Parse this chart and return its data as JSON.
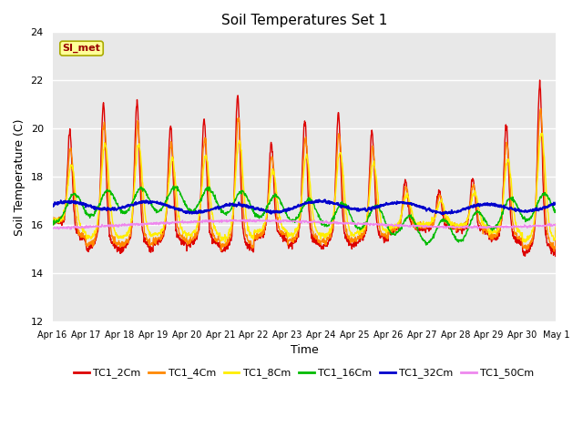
{
  "title": "Soil Temperatures Set 1",
  "xlabel": "Time",
  "ylabel": "Soil Temperature (C)",
  "ylim": [
    12,
    24
  ],
  "yticks": [
    12,
    14,
    16,
    18,
    20,
    22,
    24
  ],
  "annotation_text": "SI_met",
  "bg_color": "#e8e8e8",
  "fig_bg": "#ffffff",
  "legend_labels": [
    "TC1_2Cm",
    "TC1_4Cm",
    "TC1_8Cm",
    "TC1_16Cm",
    "TC1_32Cm",
    "TC1_50Cm"
  ],
  "line_colors": [
    "#dd0000",
    "#ff8800",
    "#ffee00",
    "#00bb00",
    "#0000cc",
    "#ee88ee"
  ],
  "line_widths": [
    1.0,
    1.0,
    1.0,
    1.0,
    1.4,
    1.0
  ],
  "x_start": 0,
  "x_end": 15,
  "xtick_positions": [
    0,
    1,
    2,
    3,
    4,
    5,
    6,
    7,
    8,
    9,
    10,
    11,
    12,
    13,
    14,
    15
  ],
  "xtick_labels": [
    "Apr 16",
    "Apr 17",
    "Apr 18",
    "Apr 19",
    "Apr 20",
    "Apr 21",
    "Apr 22",
    "Apr 23",
    "Apr 24",
    "Apr 25",
    "Apr 26",
    "Apr 27",
    "Apr 28",
    "Apr 29",
    "Apr 30",
    "May 1"
  ],
  "grid_color": "#ffffff",
  "annotation_fc": "#ffff99",
  "annotation_ec": "#aaaa00",
  "annotation_tc": "#990000"
}
